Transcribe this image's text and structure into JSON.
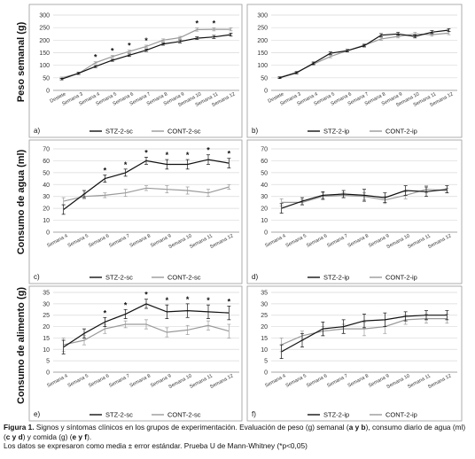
{
  "ylabels": {
    "peso": "Peso semanal (g)",
    "agua": "Consumo de agua (ml)",
    "alimento": "Consumo de alimento (g)"
  },
  "caption": {
    "figure_label": "Figura 1.",
    "line1": " Signos y síntomas clínicos en los grupos de experimentación. Evaluación de peso (g) semanal (",
    "b1": "a y b",
    "line2": "), consumo diario de agua (ml) (",
    "b2": "c y d",
    "line3": ") y comida (g) (",
    "b3": "e y f",
    "line4": ").",
    "line5": "Los datos se expresaron como media ± error estándar. Prueba U de Mann-Whitney (*p<0,05)"
  },
  "colors": {
    "stz": "#111111",
    "cont": "#9a9a9a",
    "grid": "#d9d9d9",
    "axis": "#888888"
  },
  "chart_data": [
    {
      "id": "a",
      "panel_label": "a)",
      "type": "line",
      "categories": [
        "Destete",
        "Semana 3",
        "Semana 4",
        "Semana 5",
        "Semana 6",
        "Semana 7",
        "Semana 8",
        "Semana 9",
        "Semana 10",
        "Semana 11",
        "Semana 12"
      ],
      "ylim": [
        0,
        300
      ],
      "yticks": [
        0,
        50,
        100,
        150,
        200,
        250,
        300
      ],
      "series": [
        {
          "name": "STZ-2-sc",
          "style": "stz",
          "values": [
            45,
            68,
            95,
            120,
            140,
            160,
            185,
            195,
            208,
            213,
            222
          ],
          "errors": [
            3,
            4,
            4,
            4,
            5,
            5,
            5,
            6,
            5,
            6,
            6
          ]
        },
        {
          "name": "CONT-2-sc",
          "style": "cont",
          "values": [
            50,
            67,
            110,
            135,
            155,
            175,
            200,
            210,
            242,
            243,
            243
          ],
          "errors": [
            3,
            4,
            4,
            4,
            5,
            5,
            5,
            5,
            6,
            6,
            6
          ]
        }
      ],
      "significance": [
        false,
        false,
        true,
        true,
        true,
        true,
        false,
        false,
        true,
        true,
        false
      ]
    },
    {
      "id": "b",
      "panel_label": "b)",
      "type": "line",
      "categories": [
        "Destete",
        "Semana 3",
        "Semana 4",
        "Semana 5",
        "Semana 6",
        "Semana 7",
        "Semana 8",
        "Semana 9",
        "Semana 10",
        "Semana 11",
        "Semana 12"
      ],
      "ylim": [
        0,
        300
      ],
      "yticks": [
        0,
        50,
        100,
        150,
        200,
        250,
        300
      ],
      "series": [
        {
          "name": "STZ-2-ip",
          "style": "stz",
          "values": [
            50,
            70,
            108,
            148,
            158,
            178,
            220,
            225,
            215,
            232,
            240
          ],
          "errors": [
            3,
            4,
            5,
            5,
            5,
            5,
            6,
            6,
            6,
            6,
            6
          ]
        },
        {
          "name": "CONT-2-ip",
          "style": "cont",
          "values": [
            52,
            72,
            105,
            135,
            158,
            180,
            205,
            215,
            225,
            222,
            228
          ],
          "errors": [
            3,
            4,
            5,
            5,
            5,
            5,
            6,
            6,
            6,
            6,
            6
          ]
        }
      ],
      "significance": []
    },
    {
      "id": "c",
      "panel_label": "c)",
      "type": "line",
      "categories": [
        "Semana 4",
        "Semana 5",
        "Semana 6",
        "Semana 7",
        "Semana 8",
        "Semana 9",
        "Semana 10",
        "Semana 11",
        "Semana 12"
      ],
      "ylim": [
        0,
        70
      ],
      "yticks": [
        0,
        10,
        20,
        30,
        40,
        50,
        60,
        70
      ],
      "series": [
        {
          "name": "STZ-2-sc",
          "style": "stz",
          "values": [
            19,
            32,
            45,
            50,
            60,
            57,
            57,
            61,
            58
          ],
          "errors": [
            4,
            3,
            3,
            3,
            3,
            4,
            4,
            4,
            4
          ]
        },
        {
          "name": "CONT-2-sc",
          "style": "cont",
          "values": [
            26,
            30,
            31,
            33,
            37,
            36,
            35,
            33,
            38
          ],
          "errors": [
            3,
            2,
            2,
            3,
            2,
            3,
            3,
            3,
            2
          ]
        }
      ],
      "significance": [
        false,
        false,
        true,
        true,
        true,
        true,
        true,
        true,
        true
      ]
    },
    {
      "id": "d",
      "panel_label": "d)",
      "type": "line",
      "categories": [
        "Semana 4",
        "Semana 5",
        "Semana 6",
        "Semana 7",
        "Semana 8",
        "Semana 9",
        "Semana 10",
        "Semana 11",
        "Semana 12"
      ],
      "ylim": [
        0,
        70
      ],
      "yticks": [
        0,
        10,
        20,
        30,
        40,
        50,
        60,
        70
      ],
      "series": [
        {
          "name": "STZ-2-ip",
          "style": "stz",
          "values": [
            20,
            26,
            31,
            32,
            31,
            29,
            35,
            34,
            36
          ],
          "errors": [
            4,
            3,
            3,
            3,
            5,
            4,
            4,
            4,
            3
          ]
        },
        {
          "name": "CONT-2-ip",
          "style": "cont",
          "values": [
            25,
            25,
            30,
            31,
            30,
            27,
            31,
            36,
            35
          ],
          "errors": [
            3,
            2,
            3,
            2,
            3,
            3,
            3,
            3,
            2
          ]
        }
      ],
      "significance": []
    },
    {
      "id": "e",
      "panel_label": "e)",
      "type": "line",
      "categories": [
        "Semana 4",
        "Semana 5",
        "Semana 6",
        "Semana 7",
        "Semana 8",
        "Semana 9",
        "Semana 10",
        "Semana 11",
        "Semana 12"
      ],
      "ylim": [
        0,
        35
      ],
      "yticks": [
        0,
        5,
        10,
        15,
        20,
        25,
        30,
        35
      ],
      "series": [
        {
          "name": "STZ-2-sc",
          "style": "stz",
          "values": [
            11,
            17,
            22,
            25.5,
            30,
            26.5,
            27,
            26.5,
            26
          ],
          "errors": [
            3,
            2,
            2,
            2,
            2,
            3,
            3,
            3,
            3
          ]
        },
        {
          "name": "CONT-2-sc",
          "style": "cont",
          "values": [
            12,
            14,
            19,
            21,
            21,
            17.5,
            18.5,
            20.5,
            18
          ],
          "errors": [
            3,
            2,
            2,
            1.5,
            2,
            2,
            2,
            2,
            3
          ]
        }
      ],
      "significance": [
        false,
        false,
        true,
        true,
        true,
        true,
        true,
        true,
        true
      ]
    },
    {
      "id": "f",
      "panel_label": "f)",
      "type": "line",
      "categories": [
        "Semana 4",
        "Semana 5",
        "Semana 6",
        "Semana 7",
        "Semana 8",
        "Semana 9",
        "Semana 10",
        "Semana 11",
        "Semana 12"
      ],
      "ylim": [
        0,
        35
      ],
      "yticks": [
        0,
        5,
        10,
        15,
        20,
        25,
        30,
        35
      ],
      "series": [
        {
          "name": "STZ-2-ip",
          "style": "stz",
          "values": [
            9,
            14,
            19,
            20,
            22.5,
            23,
            24.5,
            25,
            25
          ],
          "errors": [
            3,
            3,
            3,
            3,
            3,
            3,
            2,
            2,
            2
          ]
        },
        {
          "name": "CONT-2-ip",
          "style": "cont",
          "values": [
            12,
            16,
            18,
            19,
            19,
            20,
            23,
            23.5,
            23.5
          ],
          "errors": [
            3,
            2,
            2,
            2,
            3,
            3,
            2,
            2,
            2
          ]
        }
      ],
      "significance": []
    }
  ]
}
